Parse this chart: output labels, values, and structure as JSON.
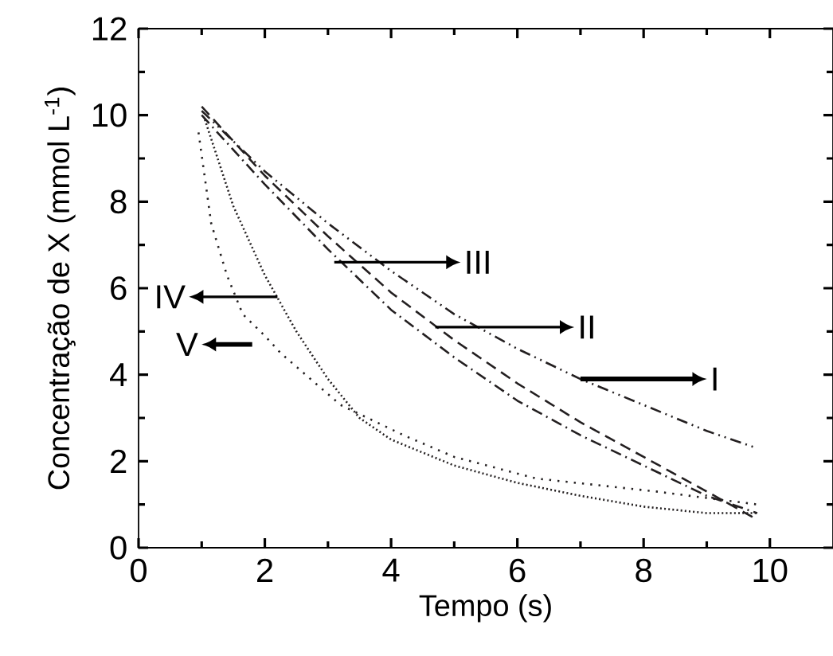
{
  "chart_data": {
    "type": "line",
    "xlabel": "Tempo (s)",
    "ylabel": "Concentração de X (mmol L$^{-1}$)",
    "xlim": [
      0,
      11
    ],
    "ylim": [
      0,
      12
    ],
    "xticks": [
      0,
      2,
      4,
      6,
      8,
      10
    ],
    "yticks": [
      0,
      2,
      4,
      6,
      8,
      10,
      12
    ],
    "grid": false,
    "marker": "none",
    "series": [
      {
        "color": "#231f20",
        "line_style": "dashdotdotted",
        "x": [
          1,
          2,
          3,
          4,
          5,
          6,
          7,
          8,
          9,
          9.8
        ],
        "values": [
          10.1,
          8.7,
          7.5,
          6.4,
          5.4,
          4.6,
          3.9,
          3.3,
          2.7,
          2.3
        ]
      },
      {
        "color": "#231f20",
        "line_style": "dashed",
        "x": [
          1,
          2,
          3,
          4,
          5,
          6,
          7,
          8,
          9,
          9.8
        ],
        "values": [
          10.2,
          8.6,
          7.2,
          5.9,
          4.8,
          3.8,
          2.9,
          2.1,
          1.3,
          0.65
        ]
      },
      {
        "color": "#231f20",
        "line_style": "dashdotted",
        "x": [
          1,
          2,
          3,
          4,
          5,
          6,
          7,
          8,
          9,
          9.8
        ],
        "values": [
          10.0,
          8.4,
          6.9,
          5.5,
          4.4,
          3.4,
          2.6,
          1.9,
          1.2,
          0.8
        ]
      },
      {
        "color": "#231f20",
        "line_style": "dotted",
        "x": [
          1.05,
          1.5,
          2,
          2.5,
          3,
          3.5,
          4,
          5,
          6,
          7,
          8,
          9,
          9.8
        ],
        "values": [
          9.9,
          7.9,
          6.3,
          5.0,
          3.9,
          3.0,
          2.5,
          1.9,
          1.5,
          1.2,
          0.95,
          0.8,
          0.8
        ]
      },
      {
        "color": "#231f20",
        "line_style": "loosely dotted",
        "x": [
          0.95,
          1.15,
          1.4,
          1.65,
          2,
          2.25,
          3.2,
          4.2,
          5,
          6.3,
          8.2,
          9.8
        ],
        "values": [
          9.6,
          7.5,
          6.3,
          5.4,
          4.9,
          4.5,
          3.3,
          2.6,
          2.1,
          1.6,
          1.3,
          1.0
        ]
      }
    ],
    "annotations": [
      {
        "text": "I",
        "x": 7.0,
        "y": 3.9
      },
      {
        "text": "II",
        "x": 4.7,
        "y": 5.1
      },
      {
        "text": "III",
        "x": 3.1,
        "y": 6.6
      },
      {
        "text": "IV",
        "x": 2.2,
        "y": 5.8
      },
      {
        "text": "V",
        "x": 2.15,
        "y": 4.7
      }
    ]
  }
}
